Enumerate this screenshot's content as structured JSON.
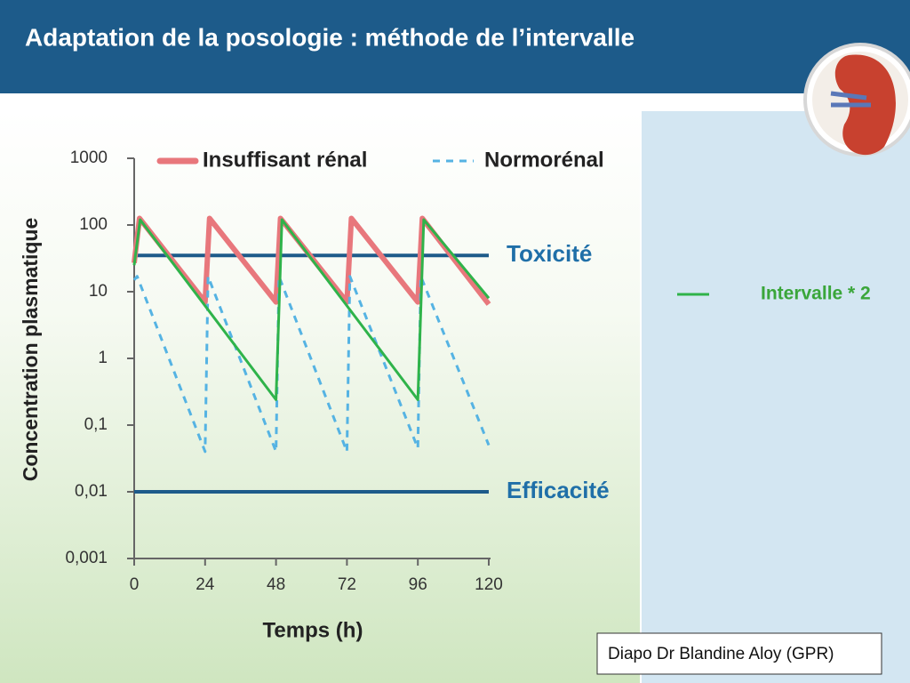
{
  "header": {
    "title": "Adaptation de la posologie : méthode de l’intervalle"
  },
  "footer": {
    "credit": "Diapo Dr Blandine Aloy (GPR)"
  },
  "chart_data": {
    "type": "line",
    "ylabel": "Concentration plasmatique",
    "xlabel": "Temps (h)",
    "log_y": true,
    "xlim": [
      0,
      120
    ],
    "xticks": [
      0,
      24,
      48,
      72,
      96,
      120
    ],
    "ylim": [
      0.001,
      1000
    ],
    "yticks": [
      1000,
      100,
      10,
      1,
      {
        "value": 0.1,
        "label": "0,1"
      },
      {
        "value": 0.01,
        "label": "0,01"
      },
      {
        "value": 0.001,
        "label": "0,001"
      }
    ],
    "series": [
      {
        "name": "Insuffisant rénal",
        "color": "#e8777c",
        "style": "solid",
        "x": [
          0,
          1.8,
          24,
          25.5,
          48,
          49.5,
          72,
          73.5,
          96,
          97.5,
          120
        ],
        "values": [
          27,
          126,
          7,
          126,
          7,
          126,
          7,
          126,
          7,
          126,
          6.5
        ]
      },
      {
        "name": "Normorénal",
        "color": "#55b3e3",
        "style": "dashed",
        "x": [
          0,
          1,
          24,
          25,
          48,
          49,
          72,
          73,
          96,
          97,
          120
        ],
        "values": [
          15,
          17,
          0.04,
          17,
          0.04,
          17,
          0.04,
          17,
          0.045,
          17,
          0.05
        ]
      },
      {
        "name": "Intervalle * 2",
        "color": "#2fb34a",
        "style": "solid",
        "x": [
          0,
          2,
          48,
          50,
          96,
          98,
          120
        ],
        "values": [
          25,
          120,
          0.24,
          120,
          0.24,
          120,
          8
        ]
      }
    ],
    "hlines": [
      {
        "label": "Toxicité",
        "value": 35,
        "color": "#1d5b8a"
      },
      {
        "label": "Efficacité",
        "value": 0.01,
        "color": "#1d5b8a"
      }
    ]
  }
}
